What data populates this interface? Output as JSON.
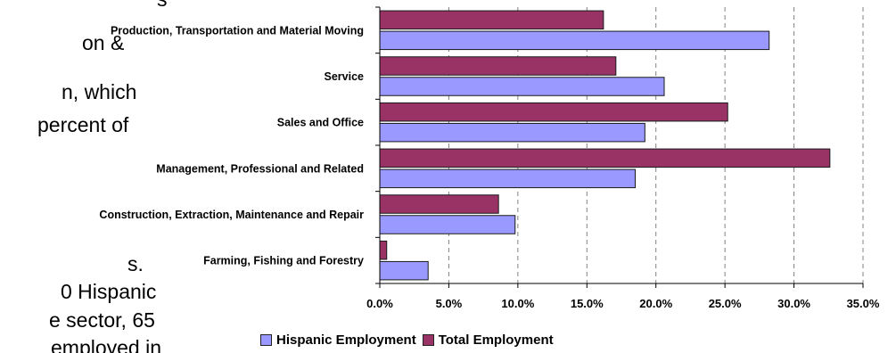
{
  "background_text": {
    "lines": [
      "s",
      "on &",
      "n, which",
      "percent of",
      "s.",
      "0 Hispanic",
      "e sector, 65",
      "employed in"
    ]
  },
  "chart_data": {
    "type": "bar",
    "orientation": "horizontal",
    "categories": [
      "Production, Transportation and Material Moving",
      "Service",
      "Sales and Office",
      "Management, Professional and Related",
      "Construction, Extraction, Maintenance and Repair",
      "Farming, Fishing and Forestry"
    ],
    "series": [
      {
        "name": "Total Employment",
        "color": "#993366",
        "values": [
          16.2,
          17.1,
          25.2,
          32.6,
          8.6,
          0.5
        ]
      },
      {
        "name": "Hispanic Employment",
        "color": "#9999ff",
        "values": [
          28.2,
          20.6,
          19.2,
          18.5,
          9.8,
          3.5
        ]
      }
    ],
    "xlim": [
      0,
      35
    ],
    "xticks": [
      "0.0%",
      "5.0%",
      "10.0%",
      "15.0%",
      "20.0%",
      "25.0%",
      "30.0%",
      "35.0%"
    ],
    "grid": true,
    "legend": {
      "position": "bottom",
      "items": [
        {
          "label": "Hispanic Employment",
          "color": "#9999ff"
        },
        {
          "label": "Total Employment",
          "color": "#993366"
        }
      ]
    }
  }
}
